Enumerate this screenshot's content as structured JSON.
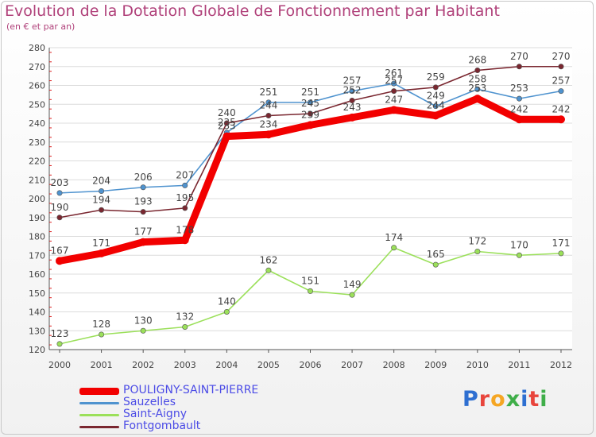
{
  "page": {
    "title": "Evolution de la Dotation Globale de Fonctionnement par Habitant",
    "subtitle": "(en € et par an)"
  },
  "brand": {
    "text": "Proxiti",
    "colors": [
      "#2e6fd1",
      "#e8453c",
      "#f5a623",
      "#3fae49",
      "#2e6fd1",
      "#e8453c",
      "#3fae49"
    ]
  },
  "chart_data": {
    "type": "line",
    "title": "Evolution de la Dotation Globale de Fonctionnement par Habitant",
    "subtitle": "(en € et par an)",
    "xlabel": "",
    "ylabel": "",
    "x": [
      "2000",
      "2001",
      "2002",
      "2003",
      "2004",
      "2005",
      "2006",
      "2007",
      "2008",
      "2009",
      "2010",
      "2011",
      "2012"
    ],
    "ylim": [
      120,
      280
    ],
    "yticks": [
      120,
      130,
      140,
      150,
      160,
      170,
      180,
      190,
      200,
      210,
      220,
      230,
      240,
      250,
      260,
      270,
      280
    ],
    "grid": "horizontal",
    "legend_position": "bottom-left",
    "series": [
      {
        "name": "Sauzelles",
        "color": "#4f93cf",
        "values": [
          203,
          204,
          206,
          207,
          235,
          251,
          251,
          257,
          261,
          249,
          258,
          253,
          257
        ],
        "labels": [
          "203",
          "204",
          "206",
          "207",
          "235",
          "251",
          "251",
          "257",
          "261",
          "249",
          "258",
          "253",
          "257"
        ]
      },
      {
        "name": "Saint-Aigny",
        "color": "#9be05a",
        "values": [
          123,
          128,
          130,
          132,
          140,
          162,
          151,
          149,
          174,
          165,
          172,
          170,
          171
        ],
        "labels": [
          "123",
          "128",
          "130",
          "132",
          "140",
          "162",
          "151",
          "149",
          "174",
          "165",
          "172",
          "170",
          "171"
        ]
      },
      {
        "name": "Fontgombault",
        "color": "#7a2730",
        "values": [
          190,
          194,
          193,
          195,
          240,
          244,
          245,
          252,
          257,
          259,
          268,
          270,
          270
        ],
        "labels": [
          "190",
          "194",
          "193",
          "195",
          "240",
          "244",
          "245",
          "252",
          "257",
          "259",
          "268",
          "270",
          "270"
        ]
      },
      {
        "name": "POULIGNY-SAINT-PIERRE",
        "color": "#f20000",
        "values": [
          167,
          171,
          177,
          178,
          233,
          234,
          239,
          243,
          247,
          244,
          253,
          242,
          242
        ],
        "labels": [
          "167",
          "171",
          "177",
          "178",
          "233",
          "234",
          "239",
          "243",
          "247",
          "244",
          "253",
          "242",
          "242"
        ]
      }
    ],
    "legend": [
      {
        "name": "POULIGNY-SAINT-PIERRE",
        "color": "#f20000",
        "thick": true
      },
      {
        "name": "Sauzelles",
        "color": "#4f93cf",
        "thick": false
      },
      {
        "name": "Saint-Aigny",
        "color": "#9be05a",
        "thick": false
      },
      {
        "name": "Fontgombault",
        "color": "#7a2730",
        "thick": false
      }
    ]
  }
}
